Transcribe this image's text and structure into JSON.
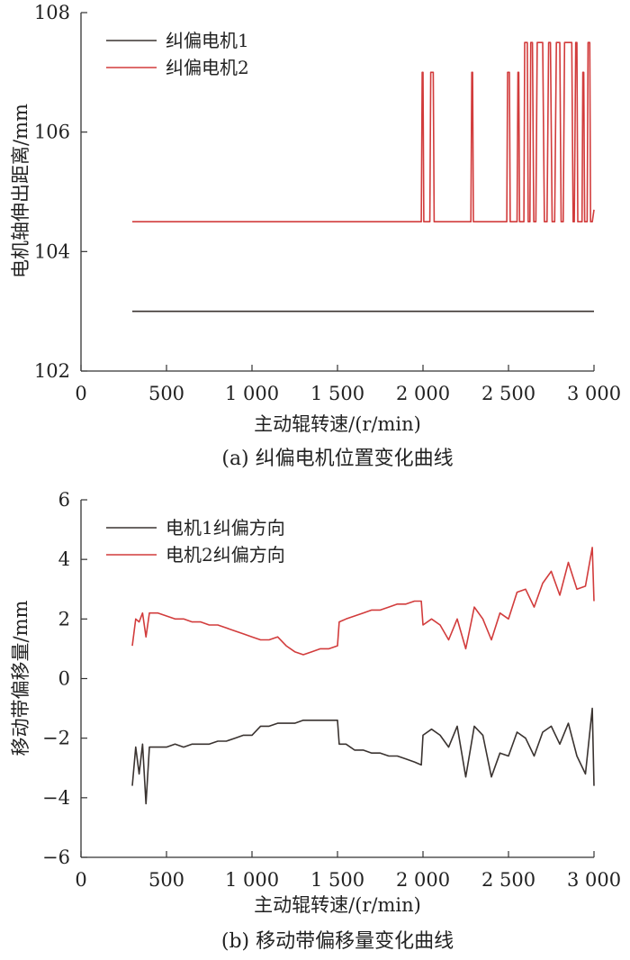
{
  "chart_data": [
    {
      "type": "line",
      "title": "",
      "caption": "(a)  纠偏电机位置变化曲线",
      "xlabel": "主动辊转速/(r/min)",
      "ylabel": "电机轴伸出距离/mm",
      "xlim": [
        0,
        3000
      ],
      "ylim": [
        102,
        108
      ],
      "xticks": [
        0,
        500,
        1000,
        1500,
        2000,
        2500,
        3000
      ],
      "xtick_labels": [
        "0",
        "500",
        "1 000",
        "1 500",
        "2 000",
        "2 500",
        "3 000"
      ],
      "yticks": [
        102,
        104,
        106,
        108
      ],
      "ytick_labels": [
        "102",
        "104",
        "106",
        "108"
      ],
      "legend": [
        "纠偏电机1",
        "纠偏电机2"
      ],
      "legend_position": "top-left",
      "series": [
        {
          "name": "纠偏电机1",
          "color": "#3a3330",
          "x": [
            300,
            3000
          ],
          "y": [
            103,
            103
          ]
        },
        {
          "name": "纠偏电机2",
          "color": "#d23c3c",
          "x": [
            300,
            1990,
            1995,
            2000,
            2005,
            2040,
            2045,
            2060,
            2065,
            2280,
            2285,
            2290,
            2295,
            2490,
            2495,
            2505,
            2510,
            2550,
            2555,
            2560,
            2565,
            2590,
            2595,
            2610,
            2615,
            2625,
            2630,
            2640,
            2648,
            2660,
            2668,
            2700,
            2710,
            2725,
            2735,
            2745,
            2755,
            2770,
            2780,
            2800,
            2808,
            2820,
            2828,
            2870,
            2878,
            2885,
            2893,
            2900,
            2905,
            2930,
            2935,
            2940,
            2945,
            2960,
            2965,
            2975,
            2980,
            2985,
            2990,
            3000
          ],
          "y": [
            104.5,
            104.5,
            107,
            107,
            104.5,
            104.5,
            107,
            107,
            104.5,
            104.5,
            107,
            107,
            104.5,
            104.5,
            107,
            107,
            104.5,
            104.5,
            107,
            107,
            104.5,
            104.5,
            107.5,
            107.5,
            104.5,
            104.5,
            107.5,
            107.5,
            104.5,
            104.5,
            107.5,
            107.5,
            104.5,
            104.5,
            107.5,
            107.5,
            104.5,
            104.5,
            107.5,
            107.5,
            104.5,
            104.5,
            107.5,
            107.5,
            104.5,
            104.5,
            107.5,
            107.5,
            104.5,
            104.5,
            107,
            107,
            104.5,
            104.5,
            107.5,
            107.5,
            104.5,
            104.5,
            104.5,
            104.7
          ]
        }
      ]
    },
    {
      "type": "line",
      "title": "",
      "caption": "(b)  移动带偏移量变化曲线",
      "xlabel": "主动辊转速/(r/min)",
      "ylabel": "移动带偏移量/mm",
      "xlim": [
        0,
        3000
      ],
      "ylim": [
        -6,
        6
      ],
      "xticks": [
        0,
        500,
        1000,
        1500,
        2000,
        2500,
        3000
      ],
      "xtick_labels": [
        "0",
        "500",
        "1 000",
        "1 500",
        "2 000",
        "2 500",
        "3 000"
      ],
      "yticks": [
        -6,
        -4,
        -2,
        0,
        2,
        4,
        6
      ],
      "ytick_labels": [
        "−6",
        "−4",
        "−2",
        "0",
        "2",
        "4",
        "6"
      ],
      "legend": [
        "电机1纠偏方向",
        "电机2纠偏方向"
      ],
      "legend_position": "top-left",
      "series": [
        {
          "name": "电机1纠偏方向",
          "color": "#3a3330",
          "x": [
            300,
            320,
            340,
            360,
            380,
            400,
            450,
            500,
            550,
            600,
            650,
            700,
            750,
            800,
            850,
            900,
            950,
            1000,
            1050,
            1100,
            1150,
            1200,
            1250,
            1300,
            1350,
            1400,
            1450,
            1500,
            1510,
            1550,
            1600,
            1650,
            1700,
            1750,
            1800,
            1850,
            1900,
            1950,
            1990,
            2000,
            2050,
            2100,
            2150,
            2200,
            2250,
            2300,
            2350,
            2400,
            2450,
            2500,
            2550,
            2600,
            2650,
            2700,
            2750,
            2800,
            2850,
            2900,
            2950,
            2990,
            3000
          ],
          "y": [
            -3.6,
            -2.3,
            -3.2,
            -2.2,
            -4.2,
            -2.3,
            -2.3,
            -2.3,
            -2.2,
            -2.3,
            -2.2,
            -2.2,
            -2.2,
            -2.1,
            -2.1,
            -2.0,
            -1.9,
            -1.9,
            -1.6,
            -1.6,
            -1.5,
            -1.5,
            -1.5,
            -1.4,
            -1.4,
            -1.4,
            -1.4,
            -1.4,
            -2.2,
            -2.2,
            -2.4,
            -2.4,
            -2.5,
            -2.5,
            -2.6,
            -2.6,
            -2.7,
            -2.8,
            -2.9,
            -1.9,
            -1.7,
            -1.9,
            -2.3,
            -1.6,
            -3.3,
            -1.6,
            -1.9,
            -3.3,
            -2.5,
            -2.6,
            -1.8,
            -2.0,
            -2.6,
            -1.8,
            -1.6,
            -2.2,
            -1.5,
            -2.6,
            -3.2,
            -1.0,
            -3.6
          ]
        },
        {
          "name": "电机2纠偏方向",
          "color": "#d23c3c",
          "x": [
            300,
            320,
            340,
            360,
            380,
            400,
            450,
            500,
            550,
            600,
            650,
            700,
            750,
            800,
            850,
            900,
            950,
            1000,
            1050,
            1100,
            1150,
            1200,
            1250,
            1300,
            1350,
            1400,
            1450,
            1500,
            1510,
            1550,
            1600,
            1650,
            1700,
            1750,
            1800,
            1850,
            1900,
            1950,
            1990,
            2000,
            2050,
            2100,
            2150,
            2200,
            2250,
            2300,
            2350,
            2400,
            2450,
            2500,
            2550,
            2600,
            2650,
            2700,
            2750,
            2800,
            2850,
            2900,
            2950,
            2990,
            3000
          ],
          "y": [
            1.1,
            2.0,
            1.9,
            2.2,
            1.4,
            2.2,
            2.2,
            2.1,
            2.0,
            2.0,
            1.9,
            1.9,
            1.8,
            1.8,
            1.7,
            1.6,
            1.5,
            1.4,
            1.3,
            1.3,
            1.4,
            1.1,
            0.9,
            0.8,
            0.9,
            1.0,
            1.0,
            1.1,
            1.9,
            2.0,
            2.1,
            2.2,
            2.3,
            2.3,
            2.4,
            2.5,
            2.5,
            2.6,
            2.6,
            1.8,
            2.0,
            1.8,
            1.3,
            2.0,
            1.0,
            2.4,
            2.0,
            1.3,
            2.2,
            2.0,
            2.9,
            3.0,
            2.4,
            3.2,
            3.6,
            2.8,
            3.9,
            3.0,
            3.1,
            4.4,
            2.6
          ]
        }
      ]
    }
  ]
}
